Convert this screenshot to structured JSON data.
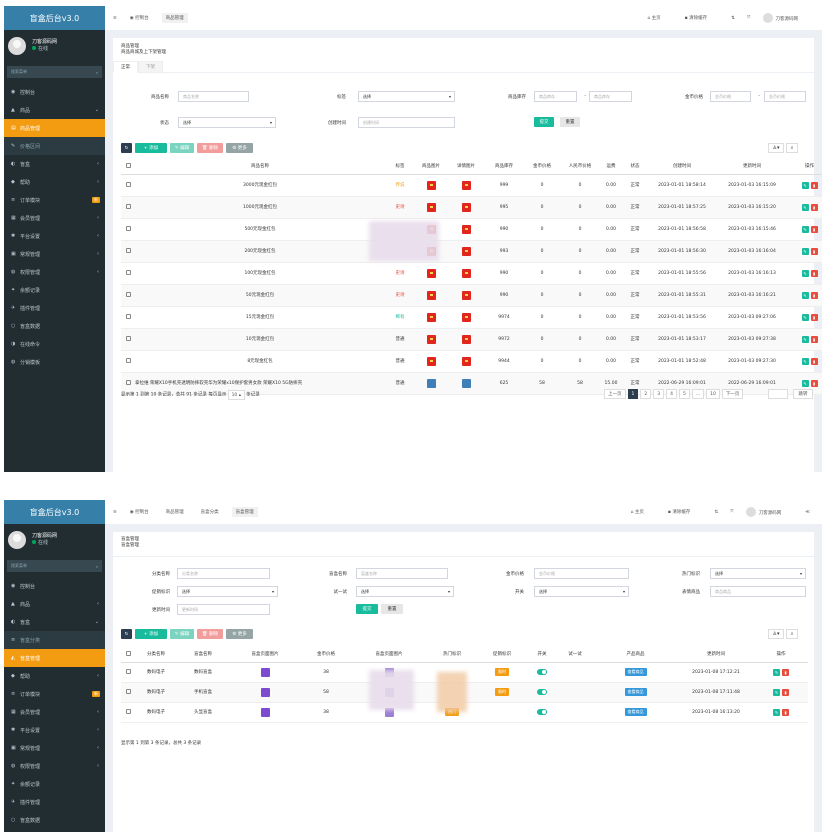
{
  "s1": {
    "app_title": "盲盒后台v3.0",
    "user": {
      "name": "刀客源码网",
      "status": "在线"
    },
    "search_placeholder": "搜索菜单",
    "menu": [
      {
        "label": "控制台",
        "icon": "dashboard-icon",
        "glyph": "◉"
      },
      {
        "label": "商品",
        "icon": "gift-icon",
        "glyph": "▲",
        "arrow": "⌄"
      },
      {
        "label": "商品管理",
        "icon": "list-icon",
        "glyph": "▤",
        "active": true
      },
      {
        "label": "价格区间",
        "icon": "tag-icon",
        "glyph": "✎",
        "sub": true
      },
      {
        "label": "盲盒",
        "icon": "box-icon",
        "glyph": "◐",
        "arrow": "‹"
      },
      {
        "label": "帮助",
        "icon": "help-icon",
        "glyph": "◆",
        "arrow": "‹"
      },
      {
        "label": "订单模块",
        "icon": "cart-icon",
        "glyph": "≡",
        "badge": "新"
      },
      {
        "label": "会员管理",
        "icon": "users-icon",
        "glyph": "▦",
        "arrow": "‹"
      },
      {
        "label": "平台设置",
        "icon": "gear-icon",
        "glyph": "✱",
        "arrow": "‹"
      },
      {
        "label": "常规管理",
        "icon": "cog-icon",
        "glyph": "▣",
        "arrow": "‹"
      },
      {
        "label": "权限管理",
        "icon": "group-icon",
        "glyph": "◍",
        "arrow": "‹"
      },
      {
        "label": "余额记录",
        "icon": "record-icon",
        "glyph": "✦"
      },
      {
        "label": "插件管理",
        "icon": "plugin-icon",
        "glyph": "✈"
      },
      {
        "label": "盲盒数据",
        "icon": "data-icon",
        "glyph": "○"
      },
      {
        "label": "在线命令",
        "icon": "terminal-icon",
        "glyph": "◑"
      },
      {
        "label": "分销模板",
        "icon": "share-icon",
        "glyph": "◍"
      }
    ],
    "header": {
      "tabs": [
        "控制台",
        "商品管理"
      ],
      "right": [
        "主页",
        "清除缓存",
        "刀客源码网"
      ],
      "misc": [
        "⇅",
        "⤧"
      ]
    },
    "breadcrumb": {
      "title": "商品管理",
      "desc": "商品商城及上下架管理"
    },
    "panel_tabs": [
      "正常",
      "下架"
    ],
    "filters": {
      "name_label": "商品名称",
      "name_ph": "商品名称",
      "tag_label": "标签",
      "tag_value": "选择",
      "stock_label": "商品库存",
      "stock_min": "商品库存",
      "stock_max": "商品库存",
      "price_label": "金币价格",
      "price_min": "金币价格",
      "price_max": "金币价格",
      "status_label": "状态",
      "status_value": "选择",
      "time_label": "创建时间",
      "time_ph": "创建时间",
      "submit": "提交",
      "reset": "重置"
    },
    "toolbar": {
      "refresh": "↻",
      "add": "+ 添加",
      "edit": "✎ 编辑",
      "del": "🗑 删除",
      "more": "⚙ 更多"
    },
    "columns": [
      "商品名称",
      "标签",
      "商品图片",
      "详情图片",
      "商品库存",
      "金币价格",
      "人民币价格",
      "运费",
      "状态",
      "创建时间",
      "更新时间",
      "操作"
    ],
    "rows": [
      {
        "name": "3000元现金红包",
        "tag": "传说",
        "tagc": "#f39c12",
        "img": "red",
        "stock": "999",
        "coin": "0",
        "rmb": "0",
        "ship": "0.00",
        "st": "正常",
        "ct": "2023-01-01 18:58:14",
        "ut": "2023-01-03 16:15:09"
      },
      {
        "name": "1000元现金红包",
        "tag": "史诗",
        "tagc": "#e74c3c",
        "img": "red",
        "stock": "995",
        "coin": "0",
        "rmb": "0",
        "ship": "0.00",
        "st": "正常",
        "ct": "2023-01-01 18:57:25",
        "ut": "2023-01-03 16:15:20"
      },
      {
        "name": "500元现金红包",
        "tag": "",
        "tagc": "#e74c3c",
        "img": "red",
        "stock": "990",
        "coin": "0",
        "rmb": "0",
        "ship": "0.00",
        "st": "正常",
        "ct": "2023-01-01 18:56:58",
        "ut": "2023-01-03 16:15:46"
      },
      {
        "name": "200元现金红包",
        "tag": "",
        "tagc": "#e74c3c",
        "img": "red",
        "stock": "993",
        "coin": "0",
        "rmb": "0",
        "ship": "0.00",
        "st": "正常",
        "ct": "2023-01-01 18:56:30",
        "ut": "2023-01-03 16:16:04"
      },
      {
        "name": "100元现金红包",
        "tag": "史诗",
        "tagc": "#e74c3c",
        "img": "red",
        "stock": "990",
        "coin": "0",
        "rmb": "0",
        "ship": "0.00",
        "st": "正常",
        "ct": "2023-01-01 18:55:56",
        "ut": "2023-01-03 16:16:13"
      },
      {
        "name": "50元现金红包",
        "tag": "史诗",
        "tagc": "#e74c3c",
        "img": "red",
        "stock": "990",
        "coin": "0",
        "rmb": "0",
        "ship": "0.00",
        "st": "正常",
        "ct": "2023-01-01 18:55:31",
        "ut": "2023-01-03 16:16:21"
      },
      {
        "name": "15元现金红包",
        "tag": "稀有",
        "tagc": "#18bc9c",
        "img": "red",
        "stock": "9974",
        "coin": "0",
        "rmb": "0",
        "ship": "0.00",
        "st": "正常",
        "ct": "2023-01-01 18:53:56",
        "ut": "2023-01-03 09:27:06"
      },
      {
        "name": "10元现金红包",
        "tag": "普通",
        "tagc": "#333",
        "img": "red",
        "stock": "9972",
        "coin": "0",
        "rmb": "0",
        "ship": "0.00",
        "st": "正常",
        "ct": "2023-01-01 18:53:17",
        "ut": "2023-01-03 09:27:38"
      },
      {
        "name": "8元现金红包",
        "tag": "普通",
        "tagc": "#333",
        "img": "red",
        "stock": "9944",
        "coin": "0",
        "rmb": "0",
        "ship": "0.00",
        "st": "正常",
        "ct": "2023-01-01 18:52:48",
        "ut": "2023-01-03 09:27:30"
      },
      {
        "name": "拿拉维 荣耀X10手机壳透明防摔软壳华为荣耀x10保护套男女款 荣耀X10 5G防摔壳",
        "tag": "普通",
        "tagc": "#333",
        "img": "blue",
        "stock": "625",
        "coin": "58",
        "rmb": "58",
        "ship": "15.00",
        "st": "正常",
        "ct": "2022-06-29 16:09:01",
        "ut": "2022-06-29 16:09:01"
      }
    ],
    "footer_info": "显示第 1 到第 10 条记录，总共 91 条记录 每页显示",
    "page_size": "10 ▴",
    "footer_tail": "条记录",
    "pages": [
      "上一页",
      "1",
      "2",
      "3",
      "4",
      "5",
      "...",
      "10",
      "下一页"
    ],
    "jump": "跳转"
  },
  "s2": {
    "app_title": "盲盒后台v3.0",
    "user": {
      "name": "刀客源码网",
      "status": "在线"
    },
    "search_placeholder": "搜索菜单",
    "menu": [
      {
        "label": "控制台",
        "icon": "dashboard-icon",
        "glyph": "◉"
      },
      {
        "label": "商品",
        "icon": "gift-icon",
        "glyph": "▲",
        "arrow": "‹"
      },
      {
        "label": "盲盒",
        "icon": "box-icon",
        "glyph": "◐",
        "arrow": "⌄"
      },
      {
        "label": "盲盒分类",
        "icon": "category-icon",
        "glyph": "≡",
        "sub": true
      },
      {
        "label": "盲盒管理",
        "icon": "box-manage-icon",
        "glyph": "◭",
        "active": true
      },
      {
        "label": "帮助",
        "icon": "help-icon",
        "glyph": "◆",
        "arrow": "‹"
      },
      {
        "label": "订单模块",
        "icon": "cart-icon",
        "glyph": "≡",
        "badge": "新"
      },
      {
        "label": "会员管理",
        "icon": "users-icon",
        "glyph": "▦",
        "arrow": "‹"
      },
      {
        "label": "平台设置",
        "icon": "gear-icon",
        "glyph": "✱",
        "arrow": "‹"
      },
      {
        "label": "常规管理",
        "icon": "cog-icon",
        "glyph": "▣",
        "arrow": "‹"
      },
      {
        "label": "权限管理",
        "icon": "group-icon",
        "glyph": "◍",
        "arrow": "‹"
      },
      {
        "label": "余额记录",
        "icon": "record-icon",
        "glyph": "✦"
      },
      {
        "label": "插件管理",
        "icon": "plugin-icon",
        "glyph": "✈"
      },
      {
        "label": "盲盒数据",
        "icon": "data-icon",
        "glyph": "○"
      }
    ],
    "header": {
      "tabs": [
        "控制台",
        "商品管理",
        "盲盒分类",
        "盲盒管理"
      ],
      "right": [
        "主页",
        "清除缓存",
        "刀客源码网"
      ],
      "misc": [
        "⇅",
        "⤧",
        "≪"
      ]
    },
    "breadcrumb": {
      "title": "盲盒管理",
      "desc": "盲盒管理"
    },
    "filters": {
      "cat_label": "分类名称",
      "cat_ph": "分类名称",
      "box_label": "盲盒名称",
      "box_ph": "盲盒名称",
      "coin_label": "金币价格",
      "coin_ph": "金币价格",
      "hot_label": "热门标识",
      "hot_value": "选择",
      "tag_label": "促销标识",
      "tag_value": "选择",
      "try_label": "试一试",
      "try_value": "选择",
      "switch_label": "开关",
      "switch_value": "选择",
      "prod_label": "表情商品",
      "prod_ph": "商品商品",
      "time_label": "更新时间",
      "time_ph": "更新时间",
      "submit": "提交",
      "reset": "重置"
    },
    "toolbar": {
      "refresh": "↻",
      "add": "+ 添加",
      "edit": "✎ 编辑",
      "del": "🗑 删除",
      "more": "⚙ 更多"
    },
    "columns": [
      "分类名称",
      "盲盒名称",
      "盲盒页面图片",
      "金币价格",
      "盲盒页面图片",
      "热门标识",
      "促销标识",
      "开关",
      "试一试",
      "产品商品",
      "更新时间",
      "操作"
    ],
    "rows": [
      {
        "cat": "数码电子",
        "box": "数码盲盒",
        "price": "38",
        "hot": "",
        "promo": "限时",
        "prod": "查看商品",
        "ut": "2023-01-08 17:12:21"
      },
      {
        "cat": "数码电子",
        "box": "手机盲盒",
        "price": "58",
        "hot": "",
        "promo": "限时",
        "prod": "查看商品",
        "ut": "2023-01-08 17:11:48"
      },
      {
        "cat": "数码电子",
        "box": "头显盲盒",
        "price": "38",
        "hot": "热门",
        "promo": "",
        "prod": "查看商品",
        "ut": "2023-01-08 16:13:20"
      }
    ],
    "footer_info": "显示第 1 到第 3 条记录，总共 3 条记录"
  }
}
